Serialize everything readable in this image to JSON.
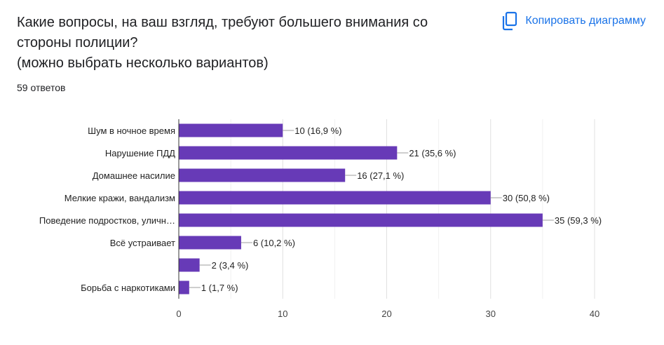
{
  "header": {
    "title": "Какие вопросы, на ваш взгляд, требуют большего внимания со стороны полиции?\n(можно выбрать несколько вариантов)",
    "responses": "59 ответов"
  },
  "actions": {
    "copy_label": "Копировать диаграмму",
    "copy_icon": "copy-icon"
  },
  "colors": {
    "bar": "#673ab7",
    "accent": "#1a73e8",
    "grid": "#e0e0e0",
    "text": "#202124"
  },
  "chart_data": {
    "type": "bar",
    "orientation": "horizontal",
    "categories": [
      "Шум в ночное время",
      "Нарушение ПДД",
      "Домашнее насилие",
      "Мелкие кражи, вандализм",
      "Поведение подростков, уличн…",
      "Всё устраивает",
      "",
      "Борьба с наркотиками"
    ],
    "values": [
      10,
      21,
      16,
      30,
      35,
      6,
      2,
      1
    ],
    "data_labels": [
      "10 (16,9 %)",
      "21 (35,6 %)",
      "16 (27,1 %)",
      "30 (50,8 %)",
      "35 (59,3 %)",
      "6 (10,2 %)",
      "2 (3,4 %)",
      "1 (1,7 %)"
    ],
    "xlim": [
      0,
      40
    ],
    "xticks": [
      0,
      10,
      20,
      30,
      40
    ],
    "grid": true
  }
}
